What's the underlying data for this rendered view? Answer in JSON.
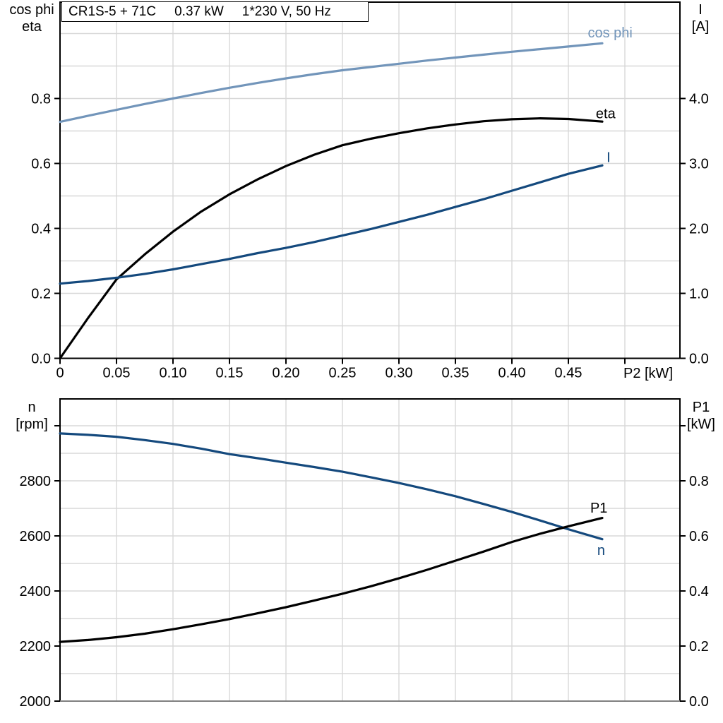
{
  "title_box": {
    "parts": [
      "CR1S-5 + 71C",
      "0.37 kW",
      "1*230 V, 50 Hz"
    ]
  },
  "colors": {
    "black": "#000000",
    "light_blue": "#7295BA",
    "dark_blue": "#14497D",
    "grid": "#D8D8D8",
    "axis_gray": "#808080",
    "background": "#FFFFFF"
  },
  "chart_data": [
    {
      "type": "line",
      "title": "CR1S-5 + 71C 0.37 kW 1*230 V, 50 Hz",
      "xlabel": "P2 [kW]",
      "x_range": [
        0,
        0.5488
      ],
      "x_ticks": {
        "values": [
          0,
          0.05,
          0.1,
          0.15,
          0.2,
          0.25,
          0.3,
          0.35,
          0.4,
          0.45,
          0.5
        ],
        "labels": [
          "0",
          "0.05",
          "0.10",
          "0.15",
          "0.20",
          "0.25",
          "0.30",
          "0.35",
          "0.40",
          "0.45",
          ""
        ]
      },
      "v_grid_values": [
        0.05,
        0.1,
        0.15,
        0.2,
        0.25,
        0.3,
        0.35,
        0.4,
        0.45,
        0.5
      ],
      "left_axis": {
        "label_lines": [
          "cos phi",
          "eta"
        ],
        "range": [
          0,
          1.097
        ],
        "tick_values": [
          0.0,
          0.2,
          0.4,
          0.6,
          0.8
        ],
        "tick_labels": [
          "0.0",
          "0.2",
          "0.4",
          "0.6",
          "0.8"
        ],
        "h_grid_values": [
          0.1,
          0.2,
          0.3,
          0.4,
          0.5,
          0.6,
          0.7,
          0.8,
          0.9,
          1.0
        ]
      },
      "right_axis": {
        "label_lines": [
          "I",
          "[A]"
        ],
        "range": [
          0,
          5.484
        ],
        "tick_values": [
          0.0,
          1.0,
          2.0,
          3.0,
          4.0
        ],
        "tick_labels": [
          "0.0",
          "1.0",
          "2.0",
          "3.0",
          "4.0"
        ]
      },
      "series": [
        {
          "name": "cos phi",
          "axis": "left",
          "color": "light_blue",
          "label": {
            "x": 0.487,
            "y": 1.003
          },
          "x": [
            0,
            0.025,
            0.05,
            0.075,
            0.1,
            0.125,
            0.15,
            0.175,
            0.2,
            0.225,
            0.25,
            0.275,
            0.3,
            0.325,
            0.35,
            0.375,
            0.4,
            0.425,
            0.45,
            0.48
          ],
          "y": [
            0.728,
            0.747,
            0.765,
            0.783,
            0.8,
            0.817,
            0.833,
            0.848,
            0.862,
            0.875,
            0.887,
            0.897,
            0.907,
            0.917,
            0.926,
            0.935,
            0.944,
            0.952,
            0.96,
            0.97
          ]
        },
        {
          "name": "eta",
          "axis": "left",
          "color": "black",
          "label": {
            "x": 0.483,
            "y": 0.754
          },
          "x": [
            0,
            0.025,
            0.05,
            0.075,
            0.1,
            0.125,
            0.15,
            0.175,
            0.2,
            0.225,
            0.25,
            0.275,
            0.3,
            0.325,
            0.35,
            0.375,
            0.4,
            0.425,
            0.45,
            0.48
          ],
          "y": [
            0.0,
            0.125,
            0.243,
            0.32,
            0.39,
            0.452,
            0.505,
            0.551,
            0.592,
            0.627,
            0.656,
            0.676,
            0.693,
            0.708,
            0.72,
            0.73,
            0.736,
            0.739,
            0.737,
            0.729
          ]
        },
        {
          "name": "I",
          "axis": "right",
          "color": "dark_blue",
          "label": {
            "x": 0.4856,
            "y": 3.1
          },
          "x": [
            0,
            0.025,
            0.05,
            0.075,
            0.1,
            0.125,
            0.15,
            0.175,
            0.2,
            0.225,
            0.25,
            0.275,
            0.3,
            0.325,
            0.35,
            0.375,
            0.4,
            0.425,
            0.45,
            0.48
          ],
          "y": [
            1.15,
            1.19,
            1.24,
            1.3,
            1.37,
            1.45,
            1.53,
            1.62,
            1.7,
            1.79,
            1.89,
            1.99,
            2.1,
            2.21,
            2.33,
            2.45,
            2.58,
            2.71,
            2.84,
            2.97
          ]
        }
      ]
    },
    {
      "type": "line",
      "title": "",
      "xlabel": "",
      "x_range": [
        0,
        0.5488
      ],
      "x_ticks": {
        "values": [],
        "labels": []
      },
      "v_grid_values": [
        0.05,
        0.1,
        0.15,
        0.2,
        0.25,
        0.3,
        0.35,
        0.4,
        0.45,
        0.5
      ],
      "left_axis": {
        "label_lines": [
          "n",
          "[rpm]"
        ],
        "range": [
          2000,
          3097
        ],
        "tick_values": [
          2000,
          2200,
          2400,
          2600,
          2800,
          3000
        ],
        "tick_labels": [
          "2000",
          "2200",
          "2400",
          "2600",
          "2800",
          ""
        ],
        "h_grid_values": [
          2100,
          2200,
          2300,
          2400,
          2500,
          2600,
          2700,
          2800,
          2900,
          3000
        ]
      },
      "right_axis": {
        "label_lines": [
          "P1",
          "[kW]"
        ],
        "range": [
          0,
          1.097
        ],
        "tick_values": [
          0.0,
          0.2,
          0.4,
          0.6,
          0.8,
          1.0
        ],
        "tick_labels": [
          "0.0",
          "0.2",
          "0.4",
          "0.6",
          "0.8",
          ""
        ]
      },
      "series": [
        {
          "name": "n",
          "axis": "left",
          "color": "dark_blue",
          "label": {
            "x": 0.479,
            "y": 2549
          },
          "x": [
            0,
            0.025,
            0.05,
            0.075,
            0.1,
            0.125,
            0.15,
            0.175,
            0.2,
            0.225,
            0.25,
            0.275,
            0.3,
            0.325,
            0.35,
            0.375,
            0.4,
            0.425,
            0.45,
            0.48
          ],
          "y": [
            2972,
            2967,
            2960,
            2948,
            2934,
            2917,
            2897,
            2882,
            2866,
            2850,
            2833,
            2813,
            2792,
            2769,
            2744,
            2716,
            2687,
            2656,
            2624,
            2588
          ]
        },
        {
          "name": "P1",
          "axis": "right",
          "color": "black",
          "label": {
            "x": 0.477,
            "y": 0.703
          },
          "x": [
            0,
            0.025,
            0.05,
            0.075,
            0.1,
            0.125,
            0.15,
            0.175,
            0.2,
            0.225,
            0.25,
            0.275,
            0.3,
            0.325,
            0.35,
            0.375,
            0.4,
            0.425,
            0.45,
            0.48
          ],
          "y": [
            0.215,
            0.222,
            0.232,
            0.245,
            0.261,
            0.279,
            0.298,
            0.319,
            0.341,
            0.365,
            0.39,
            0.417,
            0.446,
            0.477,
            0.51,
            0.543,
            0.578,
            0.608,
            0.635,
            0.665
          ]
        }
      ]
    }
  ]
}
